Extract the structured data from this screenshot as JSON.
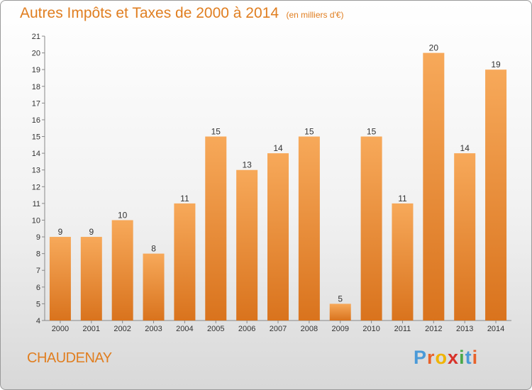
{
  "chart_data": {
    "type": "bar",
    "title": "Autres Impôts et Taxes de 2000 à 2014",
    "subtitle": "(en milliers d'€)",
    "categories": [
      "2000",
      "2001",
      "2002",
      "2003",
      "2004",
      "2005",
      "2006",
      "2007",
      "2008",
      "2009",
      "2010",
      "2011",
      "2012",
      "2013",
      "2014"
    ],
    "values": [
      9,
      9,
      10,
      8,
      11,
      15,
      13,
      14,
      15,
      5,
      15,
      11,
      20,
      14,
      19
    ],
    "ylim": [
      4,
      21
    ],
    "yticks": [
      "4",
      "5",
      "6",
      "7",
      "8",
      "9",
      "10",
      "11",
      "12",
      "13",
      "14",
      "15",
      "16",
      "17",
      "18",
      "19",
      "20",
      "21"
    ],
    "grid": false,
    "xlabel": "",
    "ylabel": ""
  },
  "commune": "CHAUDENAY",
  "logo": {
    "letters": [
      "P",
      "r",
      "o",
      "x",
      "i",
      "t",
      "i"
    ],
    "colors": [
      "#4a9ad8",
      "#e8622a",
      "#f0b400",
      "#d8322a",
      "#4aa84a",
      "#4a9ad8",
      "#e8622a"
    ]
  },
  "colors": {
    "accent": "#e07e20",
    "bar_top": "#f7a95a",
    "bar_bottom": "#d9731d"
  }
}
